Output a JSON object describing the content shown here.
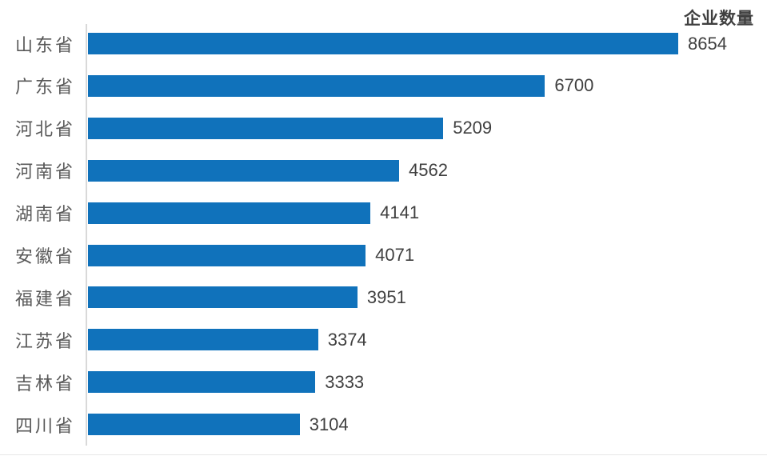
{
  "chart_data": {
    "type": "bar",
    "orientation": "horizontal",
    "title": "企业数量",
    "categories": [
      "山东省",
      "广东省",
      "河北省",
      "河南省",
      "湖南省",
      "安徽省",
      "福建省",
      "江苏省",
      "吉林省",
      "四川省"
    ],
    "values": [
      8654,
      6700,
      5209,
      4562,
      4141,
      4071,
      3951,
      3374,
      3333,
      3104
    ],
    "xlim": [
      0,
      8654
    ],
    "ylabel": "",
    "xlabel": "",
    "grid": false,
    "legend_position": "none",
    "value_labels_shown": true
  },
  "colors": {
    "bar": "#1072bb",
    "axis_line": "#d9d9d9",
    "category_label": "#595959",
    "value_label": "#404040",
    "title": "#3f3f3f",
    "background": "#ffffff"
  }
}
